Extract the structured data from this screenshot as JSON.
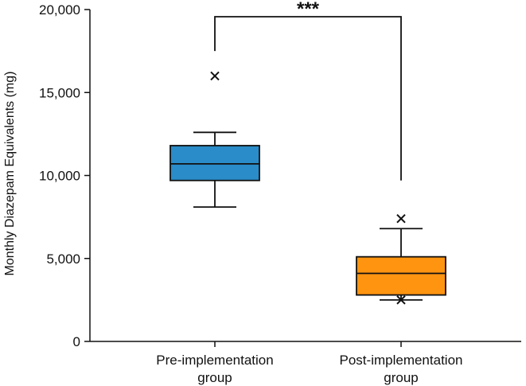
{
  "chart_data": {
    "type": "box",
    "title": "",
    "xlabel": "",
    "ylabel": "Monthly Diazepam Equivalents (mg)",
    "ylim": [
      0,
      20000
    ],
    "yticks": [
      0,
      5000,
      10000,
      15000,
      20000
    ],
    "ytick_labels": [
      "0",
      "5,000",
      "10,000",
      "15,000",
      "20,000"
    ],
    "grid": false,
    "groups": [
      {
        "label_lines": [
          "Pre-implementation",
          "group"
        ],
        "color": "#2a8cc8",
        "whisker_low": 8100,
        "q1": 9700,
        "median": 10700,
        "q3": 11800,
        "whisker_high": 12600,
        "outliers": [
          16000
        ]
      },
      {
        "label_lines": [
          "Post-implementation",
          "group"
        ],
        "color": "#ff9410",
        "whisker_low": 2500,
        "q1": 2800,
        "median": 4100,
        "q3": 5100,
        "whisker_high": 6800,
        "outliers": [
          7400,
          2500
        ]
      }
    ],
    "significance": {
      "label": "***",
      "between": [
        0,
        1
      ]
    }
  }
}
